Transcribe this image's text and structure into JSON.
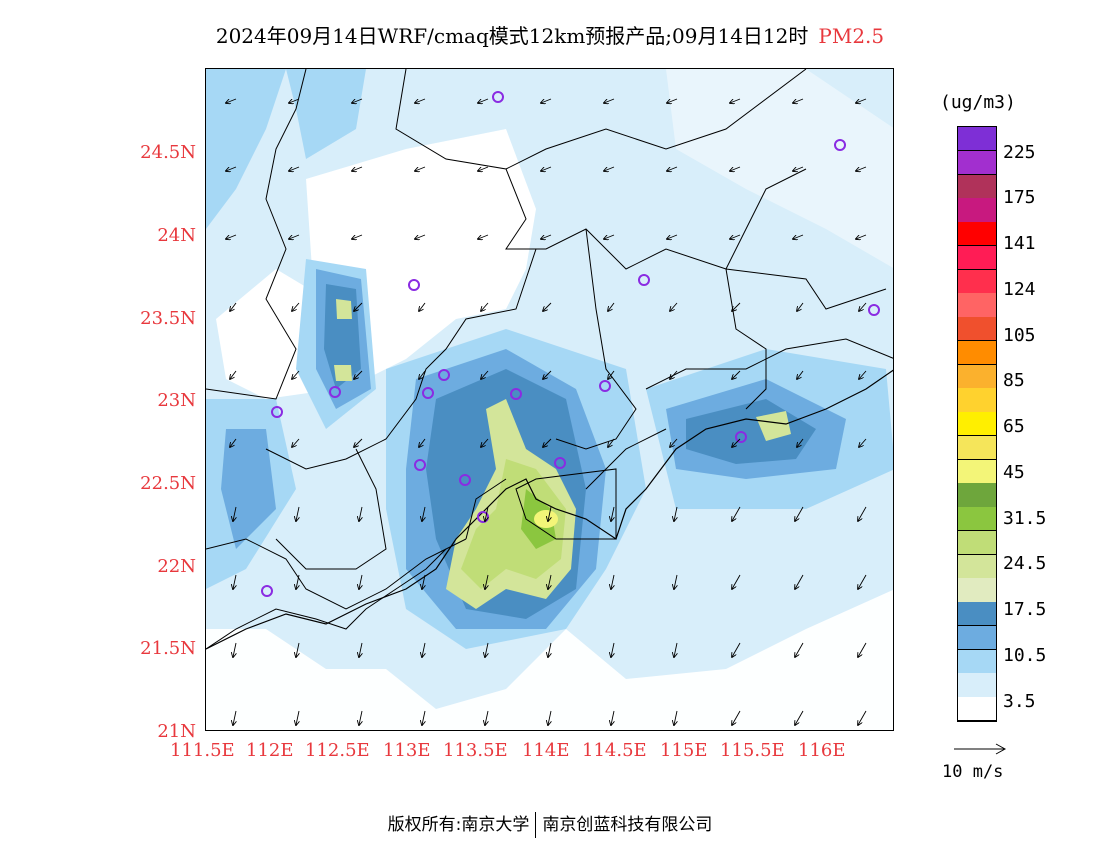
{
  "title": {
    "main": "2024年09月14日WRF/cmaq模式12km预报产品;09月14日12时",
    "variable": "PM2.5"
  },
  "axes": {
    "lon_labels": [
      "111.5E",
      "112E",
      "112.5E",
      "113E",
      "113.5E",
      "114E",
      "114.5E",
      "115E",
      "115.5E",
      "116E"
    ],
    "lat_labels": [
      "24.5N",
      "24N",
      "23.5N",
      "23N",
      "22.5N",
      "22N",
      "21.5N",
      "21N"
    ]
  },
  "legend": {
    "unit": "(ug/m3)",
    "labels": [
      "225",
      "175",
      "141",
      "124",
      "105",
      "85",
      "65",
      "45",
      "31.5",
      "24.5",
      "17.5",
      "10.5",
      "3.5"
    ],
    "colors": [
      "#7e2fd6",
      "#a22fcf",
      "#b0325a",
      "#c8197f",
      "#ff0000",
      "#ff1c55",
      "#ff2f4d",
      "#ff6464",
      "#f0502d",
      "#ff8c00",
      "#fbb12d",
      "#ffd22e",
      "#ffef00",
      "#f5e55a",
      "#f3f578",
      "#6ea63c",
      "#8bc63f",
      "#c0dd77",
      "#d3e59a",
      "#e1ebc0",
      "#4a8ec2",
      "#6dace0",
      "#a6d8f5",
      "#d8eefa",
      "#ffffff"
    ]
  },
  "wind_key": {
    "label": "10 m/s"
  },
  "copyright": {
    "left": "版权所有:南京大学",
    "right": "南京创蓝科技有限公司"
  },
  "icons": {
    "station": "station-circle-icon",
    "wind": "wind-arrow-icon"
  }
}
